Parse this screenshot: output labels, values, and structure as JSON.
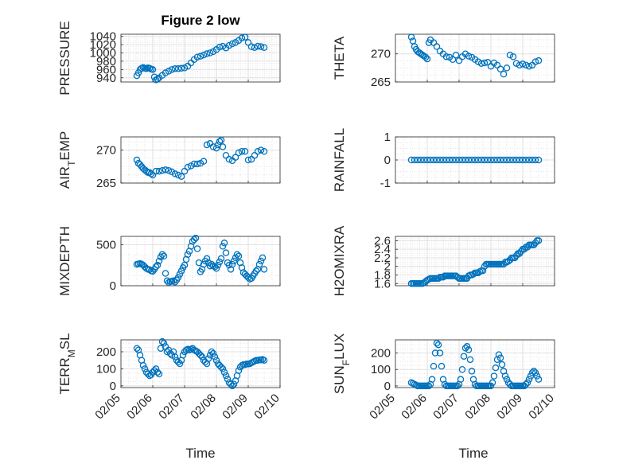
{
  "figure": {
    "title": "Figure 2 low",
    "marker_color": "#0072BD"
  },
  "x_tick_labels": [
    "02/05",
    "02/06",
    "02/07",
    "02/08",
    "02/09",
    "02/10"
  ],
  "chart_data": [
    {
      "type": "scatter",
      "ylabel": "PRESSURE",
      "ylim": [
        930,
        1045
      ],
      "yticks": [
        940,
        960,
        980,
        1000,
        1020,
        1040
      ],
      "xlim": [
        5,
        10
      ],
      "x": [
        5.5,
        5.55,
        5.6,
        5.65,
        5.7,
        5.75,
        5.8,
        5.85,
        5.9,
        5.95,
        6.0,
        6.05,
        6.1,
        6.15,
        6.2,
        6.3,
        6.4,
        6.5,
        6.6,
        6.7,
        6.8,
        6.9,
        7.0,
        7.1,
        7.2,
        7.3,
        7.4,
        7.5,
        7.6,
        7.7,
        7.8,
        7.9,
        8.0,
        8.1,
        8.2,
        8.3,
        8.4,
        8.5,
        8.6,
        8.7,
        8.8,
        8.9,
        9.0,
        9.1,
        9.2,
        9.3,
        9.4,
        9.5
      ],
      "y": [
        945,
        952,
        960,
        963,
        965,
        963,
        962,
        964,
        963,
        961,
        960,
        942,
        935,
        937,
        940,
        946,
        952,
        956,
        960,
        962,
        962,
        963,
        964,
        968,
        976,
        984,
        990,
        992,
        995,
        998,
        1000,
        1003,
        1008,
        1014,
        1016,
        1012,
        1018,
        1022,
        1025,
        1030,
        1036,
        1038,
        1025,
        1015,
        1013,
        1016,
        1015,
        1013
      ]
    },
    {
      "type": "scatter",
      "ylabel": "THETA",
      "ylim": [
        265,
        273.5
      ],
      "yticks": [
        265,
        270
      ],
      "xlim": [
        5,
        10
      ],
      "x": [
        5.5,
        5.55,
        5.6,
        5.65,
        5.7,
        5.75,
        5.8,
        5.85,
        5.9,
        5.95,
        6.0,
        6.05,
        6.1,
        6.2,
        6.3,
        6.4,
        6.5,
        6.6,
        6.7,
        6.8,
        6.9,
        7.0,
        7.1,
        7.2,
        7.3,
        7.4,
        7.5,
        7.6,
        7.7,
        7.8,
        7.9,
        8.0,
        8.1,
        8.2,
        8.3,
        8.4,
        8.5,
        8.6,
        8.7,
        8.8,
        8.9,
        9.0,
        9.1,
        9.2,
        9.3,
        9.4,
        9.5
      ],
      "y": [
        273,
        272.3,
        271.3,
        270.8,
        270.4,
        270.2,
        270.0,
        269.8,
        269.6,
        269.4,
        269.1,
        272.0,
        272.5,
        272.0,
        271.3,
        270.5,
        270.0,
        269.5,
        269.4,
        269.0,
        269.8,
        268.8,
        269.5,
        270.0,
        269.6,
        269.4,
        269.0,
        268.6,
        268.3,
        268.4,
        268.5,
        267.8,
        268.4,
        268.0,
        267.3,
        266.4,
        267.5,
        269.8,
        269.5,
        268.3,
        268.0,
        268.2,
        268.0,
        267.8,
        268.0,
        268.6,
        268.8
      ]
    },
    {
      "type": "scatter",
      "ylabel": "AIR_TEMP",
      "ylim": [
        265,
        272
      ],
      "yticks": [
        265,
        270
      ],
      "xlim": [
        5,
        10
      ],
      "x": [
        5.5,
        5.55,
        5.6,
        5.65,
        5.7,
        5.75,
        5.8,
        5.85,
        5.9,
        5.95,
        6.0,
        6.1,
        6.2,
        6.3,
        6.4,
        6.5,
        6.6,
        6.7,
        6.8,
        6.9,
        7.0,
        7.1,
        7.2,
        7.3,
        7.4,
        7.5,
        7.6,
        7.7,
        7.8,
        7.9,
        8.0,
        8.05,
        8.1,
        8.15,
        8.2,
        8.3,
        8.4,
        8.5,
        8.6,
        8.7,
        8.8,
        8.9,
        9.0,
        9.1,
        9.2,
        9.3,
        9.4,
        9.5
      ],
      "y": [
        268.5,
        268.0,
        267.8,
        267.5,
        267.2,
        267.0,
        266.8,
        266.6,
        266.6,
        266.4,
        266.2,
        266.8,
        266.8,
        266.9,
        267.0,
        266.9,
        266.7,
        266.4,
        266.2,
        266.0,
        266.8,
        267.4,
        267.6,
        267.9,
        267.9,
        268.0,
        268.3,
        270.8,
        271.0,
        270.5,
        270.3,
        270.8,
        271.3,
        271.5,
        270.5,
        269.2,
        268.6,
        268.4,
        268.9,
        269.6,
        269.8,
        269.8,
        268.5,
        268.6,
        269.2,
        269.8,
        270.0,
        269.8
      ]
    },
    {
      "type": "scatter",
      "ylabel": "RAINFALL",
      "ylim": [
        -1,
        1
      ],
      "yticks": [
        -1,
        0,
        1
      ],
      "xlim": [
        5,
        10
      ],
      "x": [
        5.5,
        5.6,
        5.7,
        5.8,
        5.9,
        6.0,
        6.1,
        6.2,
        6.3,
        6.4,
        6.5,
        6.6,
        6.7,
        6.8,
        6.9,
        7.0,
        7.1,
        7.2,
        7.3,
        7.4,
        7.5,
        7.6,
        7.7,
        7.8,
        7.9,
        8.0,
        8.1,
        8.2,
        8.3,
        8.4,
        8.5,
        8.6,
        8.7,
        8.8,
        8.9,
        9.0,
        9.1,
        9.2,
        9.3,
        9.4,
        9.5
      ],
      "y": [
        0,
        0,
        0,
        0,
        0,
        0,
        0,
        0,
        0,
        0,
        0,
        0,
        0,
        0,
        0,
        0,
        0,
        0,
        0,
        0,
        0,
        0,
        0,
        0,
        0,
        0,
        0,
        0,
        0,
        0,
        0,
        0,
        0,
        0,
        0,
        0,
        0,
        0,
        0,
        0,
        0
      ]
    },
    {
      "type": "scatter",
      "ylabel": "MIXDEPTH",
      "ylim": [
        0,
        600
      ],
      "yticks": [
        0,
        500
      ],
      "xlim": [
        5,
        10
      ],
      "x": [
        5.5,
        5.55,
        5.6,
        5.65,
        5.7,
        5.75,
        5.8,
        5.85,
        5.9,
        5.95,
        6.0,
        6.05,
        6.1,
        6.15,
        6.2,
        6.25,
        6.3,
        6.35,
        6.4,
        6.45,
        6.5,
        6.55,
        6.6,
        6.65,
        6.7,
        6.75,
        6.8,
        6.85,
        6.9,
        6.95,
        7.0,
        7.05,
        7.1,
        7.15,
        7.2,
        7.25,
        7.3,
        7.35,
        7.4,
        7.45,
        7.5,
        7.55,
        7.6,
        7.65,
        7.7,
        7.75,
        7.8,
        7.85,
        7.9,
        7.95,
        8.0,
        8.05,
        8.1,
        8.15,
        8.2,
        8.25,
        8.3,
        8.35,
        8.4,
        8.45,
        8.5,
        8.55,
        8.6,
        8.65,
        8.7,
        8.75,
        8.8,
        8.85,
        8.9,
        8.95,
        9.0,
        9.05,
        9.1,
        9.15,
        9.2,
        9.25,
        9.3,
        9.35,
        9.4,
        9.45,
        9.5
      ],
      "y": [
        260,
        265,
        270,
        262,
        250,
        230,
        210,
        200,
        195,
        180,
        175,
        200,
        230,
        250,
        300,
        350,
        380,
        360,
        150,
        60,
        40,
        50,
        55,
        60,
        45,
        70,
        100,
        140,
        180,
        220,
        250,
        320,
        380,
        420,
        480,
        540,
        560,
        580,
        450,
        280,
        170,
        200,
        260,
        300,
        330,
        280,
        240,
        260,
        240,
        230,
        210,
        250,
        290,
        330,
        480,
        520,
        400,
        280,
        250,
        200,
        260,
        300,
        340,
        380,
        360,
        280,
        220,
        160,
        140,
        120,
        100,
        80,
        90,
        120,
        150,
        180,
        200,
        260,
        300,
        340,
        200
      ]
    },
    {
      "type": "scatter",
      "ylabel": "H2OMIXRA",
      "ylim": [
        1.55,
        2.7
      ],
      "yticks": [
        1.6,
        1.8,
        2.0,
        2.2,
        2.4,
        2.6
      ],
      "xlim": [
        5,
        10
      ],
      "x": [
        5.5,
        5.55,
        5.6,
        5.65,
        5.7,
        5.75,
        5.8,
        5.85,
        5.9,
        5.95,
        6.0,
        6.05,
        6.1,
        6.15,
        6.2,
        6.25,
        6.3,
        6.35,
        6.4,
        6.45,
        6.5,
        6.55,
        6.6,
        6.65,
        6.7,
        6.75,
        6.8,
        6.85,
        6.9,
        6.95,
        7.0,
        7.05,
        7.1,
        7.15,
        7.2,
        7.25,
        7.3,
        7.35,
        7.4,
        7.45,
        7.5,
        7.55,
        7.6,
        7.65,
        7.7,
        7.75,
        7.8,
        7.85,
        7.9,
        7.95,
        8.0,
        8.05,
        8.1,
        8.15,
        8.2,
        8.25,
        8.3,
        8.35,
        8.4,
        8.45,
        8.5,
        8.55,
        8.6,
        8.65,
        8.7,
        8.75,
        8.8,
        8.85,
        8.9,
        8.95,
        9.0,
        9.05,
        9.1,
        9.15,
        9.2,
        9.25,
        9.3,
        9.35,
        9.4,
        9.45,
        9.5
      ],
      "y": [
        1.6,
        1.6,
        1.6,
        1.6,
        1.6,
        1.6,
        1.6,
        1.6,
        1.62,
        1.65,
        1.68,
        1.7,
        1.72,
        1.72,
        1.72,
        1.72,
        1.72,
        1.72,
        1.75,
        1.75,
        1.75,
        1.78,
        1.78,
        1.78,
        1.78,
        1.78,
        1.78,
        1.78,
        1.78,
        1.75,
        1.72,
        1.72,
        1.72,
        1.72,
        1.72,
        1.72,
        1.78,
        1.8,
        1.8,
        1.82,
        1.85,
        1.85,
        1.85,
        1.88,
        1.9,
        1.9,
        2.0,
        2.05,
        2.05,
        2.05,
        2.05,
        2.05,
        2.05,
        2.05,
        2.05,
        2.05,
        2.05,
        2.05,
        2.05,
        2.1,
        2.1,
        2.12,
        2.15,
        2.2,
        2.2,
        2.2,
        2.25,
        2.3,
        2.3,
        2.35,
        2.4,
        2.4,
        2.45,
        2.45,
        2.5,
        2.5,
        2.5,
        2.5,
        2.55,
        2.6,
        2.6
      ]
    },
    {
      "type": "scatter",
      "ylabel": "TERR_MSL",
      "ylim": [
        -10,
        270
      ],
      "yticks": [
        0,
        100,
        200
      ],
      "xlim": [
        5,
        10
      ],
      "x": [
        5.5,
        5.55,
        5.6,
        5.65,
        5.7,
        5.75,
        5.8,
        5.85,
        5.9,
        5.95,
        6.0,
        6.05,
        6.1,
        6.15,
        6.2,
        6.25,
        6.3,
        6.35,
        6.4,
        6.45,
        6.5,
        6.55,
        6.6,
        6.65,
        6.7,
        6.75,
        6.8,
        6.85,
        6.9,
        6.95,
        7.0,
        7.05,
        7.1,
        7.15,
        7.2,
        7.25,
        7.3,
        7.35,
        7.4,
        7.45,
        7.5,
        7.55,
        7.6,
        7.65,
        7.7,
        7.75,
        7.8,
        7.85,
        7.9,
        7.95,
        8.0,
        8.05,
        8.1,
        8.15,
        8.2,
        8.25,
        8.3,
        8.35,
        8.4,
        8.45,
        8.5,
        8.55,
        8.6,
        8.65,
        8.7,
        8.75,
        8.8,
        8.85,
        8.9,
        8.95,
        9.0,
        9.05,
        9.1,
        9.15,
        9.2,
        9.25,
        9.3,
        9.35,
        9.4,
        9.45,
        9.5
      ],
      "y": [
        220,
        210,
        180,
        150,
        120,
        100,
        80,
        70,
        60,
        65,
        80,
        90,
        100,
        80,
        70,
        220,
        260,
        250,
        230,
        200,
        210,
        190,
        180,
        200,
        170,
        150,
        140,
        130,
        150,
        180,
        200,
        210,
        215,
        210,
        215,
        220,
        210,
        205,
        200,
        190,
        180,
        170,
        150,
        140,
        130,
        160,
        180,
        200,
        190,
        170,
        150,
        130,
        120,
        110,
        100,
        80,
        60,
        40,
        20,
        10,
        0,
        10,
        30,
        60,
        90,
        110,
        120,
        125,
        125,
        128,
        128,
        130,
        135,
        140,
        145,
        150,
        150,
        152,
        152,
        155,
        150
      ]
    },
    {
      "type": "scatter",
      "ylabel": "SUN_FLUX",
      "ylim": [
        -10,
        280
      ],
      "yticks": [
        0,
        100,
        200
      ],
      "xlim": [
        5,
        10
      ],
      "x": [
        5.5,
        5.55,
        5.6,
        5.65,
        5.7,
        5.75,
        5.8,
        5.85,
        5.9,
        5.95,
        6.0,
        6.05,
        6.1,
        6.15,
        6.2,
        6.25,
        6.3,
        6.35,
        6.4,
        6.45,
        6.5,
        6.55,
        6.6,
        6.65,
        6.7,
        6.75,
        6.8,
        6.85,
        6.9,
        6.95,
        7.0,
        7.05,
        7.1,
        7.15,
        7.2,
        7.25,
        7.3,
        7.35,
        7.4,
        7.45,
        7.5,
        7.55,
        7.6,
        7.65,
        7.7,
        7.75,
        7.8,
        7.85,
        7.9,
        7.95,
        8.0,
        8.05,
        8.1,
        8.15,
        8.2,
        8.25,
        8.3,
        8.35,
        8.4,
        8.45,
        8.5,
        8.55,
        8.6,
        8.65,
        8.7,
        8.75,
        8.8,
        8.85,
        8.9,
        8.95,
        9.0,
        9.05,
        9.1,
        9.15,
        9.2,
        9.25,
        9.3,
        9.35,
        9.4,
        9.45,
        9.5
      ],
      "y": [
        20,
        15,
        10,
        5,
        0,
        0,
        0,
        0,
        0,
        0,
        0,
        0,
        10,
        40,
        120,
        200,
        260,
        250,
        200,
        120,
        40,
        10,
        0,
        0,
        0,
        0,
        0,
        0,
        0,
        0,
        10,
        40,
        100,
        180,
        230,
        240,
        220,
        160,
        90,
        40,
        10,
        0,
        0,
        0,
        0,
        0,
        0,
        0,
        0,
        0,
        0,
        20,
        60,
        110,
        160,
        190,
        170,
        130,
        90,
        60,
        40,
        20,
        10,
        0,
        0,
        0,
        0,
        0,
        0,
        0,
        0,
        0,
        10,
        20,
        40,
        60,
        80,
        90,
        80,
        60,
        40
      ]
    }
  ],
  "axis_labels": {
    "xlabel_left": "Time",
    "xlabel_right": "Time"
  }
}
